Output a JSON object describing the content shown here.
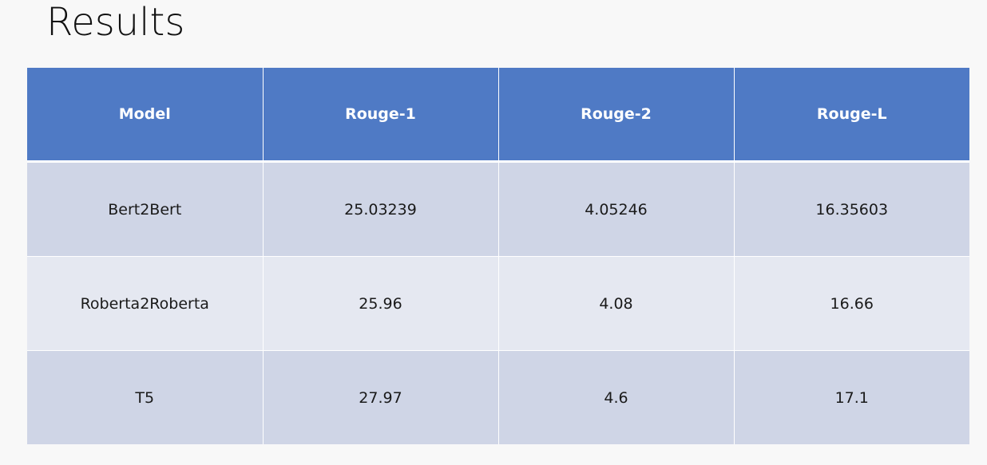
{
  "slide": {
    "title": "Results"
  },
  "table": {
    "headers": [
      "Model",
      "Rouge-1",
      "Rouge-2",
      "Rouge-L"
    ],
    "rows": [
      [
        "Bert2Bert",
        "25.03239",
        "4.05246",
        "16.35603"
      ],
      [
        "Roberta2Roberta",
        "25.96",
        "4.08",
        "16.66"
      ],
      [
        "T5",
        "27.97",
        "4.6",
        "17.1"
      ]
    ]
  },
  "colors": {
    "header_bg": "#4f7ac5",
    "row_dark": "#cfd5e6",
    "row_light": "#e5e8f1",
    "background": "#f8f8f8"
  }
}
